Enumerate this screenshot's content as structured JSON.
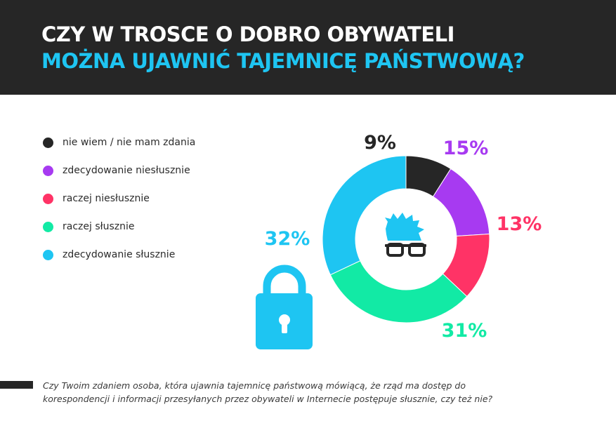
{
  "header": {
    "title_line1": "CZY W TROSCE O DOBRO OBYWATELI",
    "title_line2": "MOŻNA UJAWNIĆ TAJEMNICĘ PAŃSTWOWĄ?"
  },
  "colors": {
    "header_bg": "#262626",
    "title_accent": "#1ec5f2",
    "icon_blue": "#1ec5f2"
  },
  "chart_data": {
    "type": "pie",
    "style": "donut",
    "legend_position": "left",
    "center_icon": "nerd-face-with-glasses-icon",
    "slices": [
      {
        "label": "nie wiem / nie mam zdania",
        "value": 9,
        "display": "9%",
        "color": "#262626"
      },
      {
        "label": "zdecydowanie niesłusznie",
        "value": 15,
        "display": "15%",
        "color": "#a73af1"
      },
      {
        "label": "raczej niesłusznie",
        "value": 13,
        "display": "13%",
        "color": "#ff3366"
      },
      {
        "label": "raczej słusznie",
        "value": 31,
        "display": "31%",
        "color": "#12eaa5"
      },
      {
        "label": "zdecydowanie słusznie",
        "value": 32,
        "display": "32%",
        "color": "#1ec5f2"
      }
    ]
  },
  "decoration": {
    "icon": "padlock-icon"
  },
  "footnote": {
    "line1": "Czy Twoim zdaniem osoba, która ujawnia tajemnicę państwową mówiącą, że rząd ma dostęp do",
    "line2": "korespondencji i informacji przesyłanych przez obywateli w Internecie postępuje słusznie, czy też nie?"
  }
}
